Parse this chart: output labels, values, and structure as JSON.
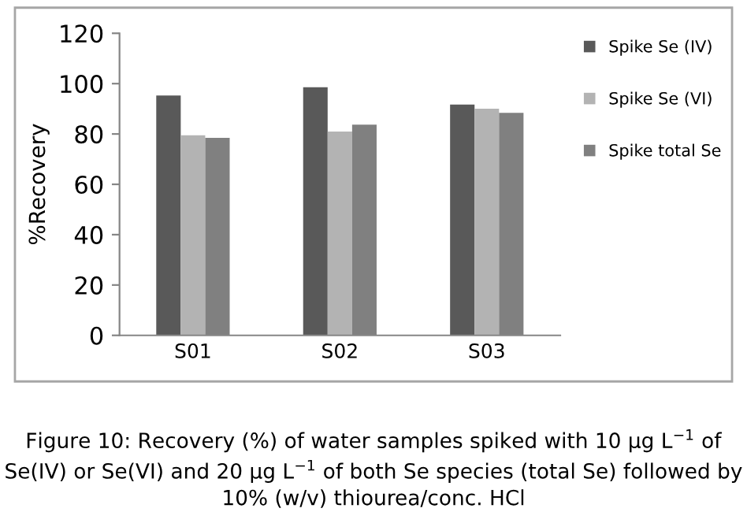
{
  "chart_data": {
    "type": "bar",
    "categories": [
      "S01",
      "S02",
      "S03"
    ],
    "ylabel": "%Recovery",
    "ylim": [
      0,
      120
    ],
    "yticks": [
      0,
      20,
      40,
      60,
      80,
      100,
      120
    ],
    "grid": false,
    "legend": "right",
    "series": [
      {
        "name": "Spike Se (IV)",
        "color": "#595959",
        "values": [
          95.3,
          98.6,
          91.7
        ]
      },
      {
        "name": "Spike Se (VI)",
        "color": "#b3b3b3",
        "values": [
          79.5,
          81,
          90
        ]
      },
      {
        "name": "Spike total Se",
        "color": "#808080",
        "values": [
          78.5,
          83.7,
          88.4
        ]
      }
    ],
    "annotations": [
      "Figure 10: Recovery (%) of water samples spiked with 10 µg L$^{−1}$ of Se(IV) or Se(VI) and 20 µg L$^{−1}$ of both Se species (total Se) followed by 10% (w/v) thiourea/conc. HCl"
    ]
  }
}
